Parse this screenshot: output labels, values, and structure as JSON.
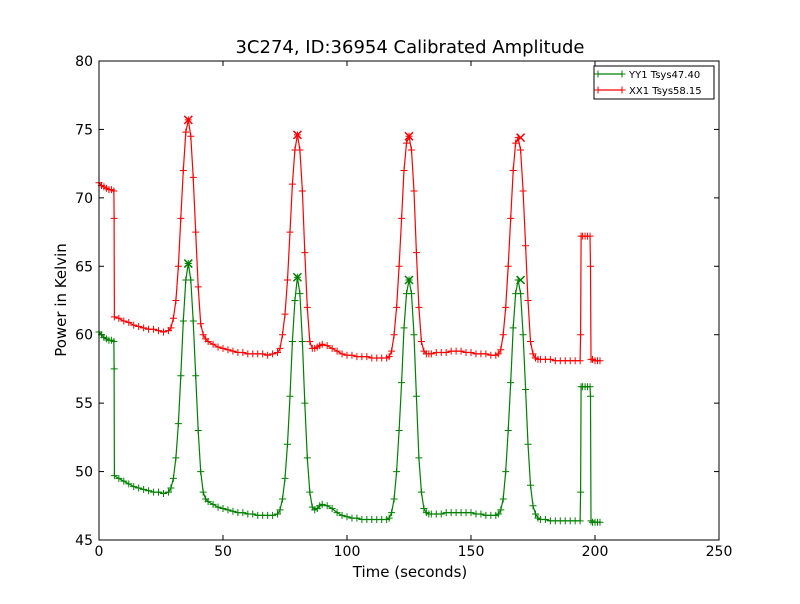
{
  "chart_data": {
    "type": "line",
    "title": "3C274, ID:36954 Calibrated Amplitude",
    "xlabel": "Time (seconds)",
    "ylabel": "Power in Kelvin",
    "xlim": [
      0,
      250
    ],
    "ylim": [
      45,
      80
    ],
    "xticks": [
      0,
      50,
      100,
      150,
      200,
      250
    ],
    "yticks": [
      45,
      50,
      55,
      60,
      65,
      70,
      75,
      80
    ],
    "grid": false,
    "legend_position": "top-right",
    "marker": "plus",
    "series": [
      {
        "name": "YY1 Tsys47.40",
        "color": "#008000",
        "x": [
          0,
          1,
          2,
          3,
          4,
          5,
          6,
          6.1,
          6.2,
          8,
          10,
          12,
          14,
          16,
          18,
          20,
          22,
          24,
          26,
          28,
          29,
          30,
          31,
          32,
          33,
          34,
          35,
          36,
          37,
          38,
          39,
          40,
          41,
          42,
          43,
          44,
          46,
          48,
          50,
          52,
          54,
          56,
          58,
          60,
          62,
          64,
          66,
          68,
          70,
          72,
          73,
          74,
          75,
          76,
          77,
          78,
          79,
          80,
          81,
          82,
          83,
          84,
          85,
          86,
          87,
          88,
          89,
          90,
          92,
          94,
          96,
          98,
          100,
          102,
          104,
          106,
          108,
          110,
          112,
          114,
          116,
          117,
          118,
          119,
          120,
          121,
          122,
          123,
          124,
          125,
          126,
          127,
          128,
          129,
          130,
          131,
          132,
          133,
          134,
          136,
          138,
          140,
          142,
          144,
          146,
          148,
          150,
          152,
          154,
          156,
          158,
          160,
          161,
          162,
          163,
          164,
          165,
          166,
          167,
          168,
          169,
          170,
          171,
          172,
          173,
          174,
          175,
          176,
          177,
          178,
          180,
          182,
          184,
          186,
          188,
          190,
          192,
          194,
          194.2,
          194.4,
          195,
          196,
          197,
          198,
          198.2,
          198.4,
          199,
          200,
          201,
          202
        ],
        "y": [
          60.2,
          60.0,
          59.8,
          59.7,
          59.6,
          59.6,
          59.5,
          57.5,
          49.7,
          49.5,
          49.3,
          49.1,
          48.9,
          48.8,
          48.7,
          48.6,
          48.5,
          48.5,
          48.4,
          48.5,
          48.8,
          49.5,
          51.0,
          53.5,
          57.0,
          61.0,
          64.0,
          65.2,
          64.0,
          61.0,
          57.0,
          53.0,
          50.0,
          48.5,
          48.0,
          47.8,
          47.6,
          47.4,
          47.3,
          47.2,
          47.1,
          47.0,
          47.0,
          46.9,
          46.9,
          46.8,
          46.8,
          46.8,
          46.8,
          46.9,
          47.2,
          48.0,
          49.5,
          52.0,
          55.5,
          59.5,
          62.5,
          64.2,
          63.0,
          59.5,
          55.0,
          51.0,
          48.5,
          47.4,
          47.2,
          47.3,
          47.5,
          47.6,
          47.5,
          47.3,
          47.0,
          46.8,
          46.7,
          46.6,
          46.6,
          46.5,
          46.5,
          46.5,
          46.5,
          46.5,
          46.5,
          46.6,
          47.0,
          48.0,
          50.0,
          53.0,
          56.5,
          60.5,
          63.0,
          64.0,
          63.0,
          60.0,
          55.5,
          51.0,
          48.5,
          47.3,
          47.0,
          46.9,
          46.9,
          46.9,
          46.9,
          47.0,
          47.0,
          47.0,
          47.0,
          47.0,
          47.0,
          46.9,
          46.9,
          46.8,
          46.8,
          46.8,
          46.9,
          47.2,
          48.0,
          50.0,
          53.0,
          56.5,
          60.5,
          63.0,
          64.0,
          63.0,
          60.0,
          56.0,
          52.0,
          49.0,
          47.5,
          46.9,
          46.6,
          46.5,
          46.5,
          46.4,
          46.4,
          46.4,
          46.4,
          46.4,
          46.4,
          46.4,
          48.5,
          56.2,
          56.2,
          56.2,
          56.2,
          56.2,
          55.5,
          46.4,
          46.3,
          46.3,
          46.3,
          46.3
        ],
        "peak_markers": [
          [
            36,
            65.2
          ],
          [
            80,
            64.2
          ],
          [
            125,
            64.0
          ],
          [
            170,
            64.0
          ]
        ]
      },
      {
        "name": "XX1 Tsys58.15",
        "color": "#ff0000",
        "x": [
          0,
          1,
          2,
          3,
          4,
          5,
          6,
          6.1,
          6.2,
          8,
          10,
          12,
          14,
          16,
          18,
          20,
          22,
          24,
          26,
          28,
          29,
          30,
          31,
          32,
          33,
          34,
          35,
          36,
          37,
          38,
          39,
          40,
          41,
          42,
          43,
          44,
          46,
          48,
          50,
          52,
          54,
          56,
          58,
          60,
          62,
          64,
          66,
          68,
          70,
          72,
          73,
          74,
          75,
          76,
          77,
          78,
          79,
          80,
          81,
          82,
          83,
          84,
          85,
          86,
          87,
          88,
          89,
          90,
          92,
          94,
          96,
          98,
          100,
          102,
          104,
          106,
          108,
          110,
          112,
          114,
          116,
          117,
          118,
          119,
          120,
          121,
          122,
          123,
          124,
          125,
          126,
          127,
          128,
          129,
          130,
          131,
          132,
          133,
          134,
          136,
          138,
          140,
          142,
          144,
          146,
          148,
          150,
          152,
          154,
          156,
          158,
          160,
          161,
          162,
          163,
          164,
          165,
          166,
          167,
          168,
          169,
          170,
          171,
          172,
          173,
          174,
          175,
          176,
          177,
          178,
          180,
          182,
          184,
          186,
          188,
          190,
          192,
          194,
          194.2,
          194.4,
          195,
          196,
          197,
          198,
          198.2,
          198.4,
          199,
          200,
          201,
          202
        ],
        "y": [
          71.1,
          70.9,
          70.8,
          70.7,
          70.6,
          70.6,
          70.5,
          68.5,
          61.3,
          61.2,
          61.0,
          60.9,
          60.7,
          60.6,
          60.5,
          60.4,
          60.4,
          60.3,
          60.2,
          60.3,
          60.5,
          61.2,
          62.5,
          65.0,
          68.5,
          72.0,
          74.8,
          75.7,
          74.5,
          71.5,
          67.5,
          63.5,
          60.8,
          60.0,
          59.7,
          59.5,
          59.3,
          59.1,
          59.0,
          58.9,
          58.8,
          58.7,
          58.7,
          58.6,
          58.6,
          58.6,
          58.6,
          58.5,
          58.6,
          58.7,
          59.0,
          60.0,
          61.5,
          64.0,
          67.5,
          71.0,
          73.5,
          74.6,
          73.5,
          70.5,
          66.0,
          62.0,
          59.5,
          59.0,
          59.0,
          59.1,
          59.2,
          59.3,
          59.2,
          59.0,
          58.8,
          58.6,
          58.5,
          58.5,
          58.4,
          58.4,
          58.4,
          58.3,
          58.3,
          58.3,
          58.3,
          58.4,
          58.8,
          60.0,
          62.0,
          65.0,
          68.5,
          72.0,
          74.0,
          74.5,
          73.5,
          70.5,
          66.0,
          62.0,
          59.5,
          58.8,
          58.6,
          58.6,
          58.6,
          58.7,
          58.7,
          58.7,
          58.8,
          58.8,
          58.8,
          58.7,
          58.7,
          58.6,
          58.6,
          58.6,
          58.5,
          58.5,
          58.6,
          58.9,
          60.0,
          62.0,
          65.0,
          68.5,
          72.0,
          74.0,
          74.4,
          73.5,
          70.5,
          66.5,
          62.5,
          59.5,
          58.6,
          58.3,
          58.2,
          58.2,
          58.2,
          58.2,
          58.1,
          58.1,
          58.1,
          58.1,
          58.1,
          58.1,
          60.0,
          67.2,
          67.2,
          67.2,
          67.2,
          67.2,
          65.0,
          58.2,
          58.2,
          58.1,
          58.1,
          58.1
        ],
        "peak_markers": [
          [
            36,
            75.7
          ],
          [
            80,
            74.6
          ],
          [
            125,
            74.5
          ],
          [
            170,
            74.4
          ]
        ]
      }
    ]
  }
}
